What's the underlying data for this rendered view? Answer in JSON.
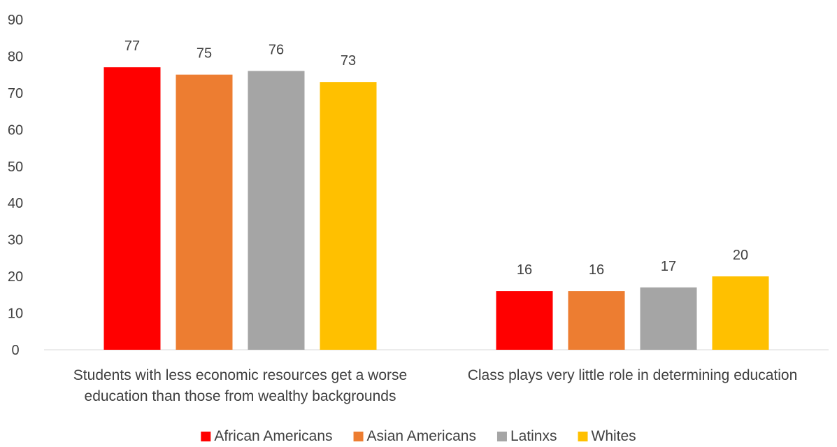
{
  "chart_data": {
    "type": "bar",
    "categories": [
      [
        "Students with less economic resources get a worse",
        "education than those from wealthy backgrounds"
      ],
      [
        "Class plays very little role in determining education"
      ]
    ],
    "series": [
      {
        "name": "African Americans",
        "color": "#FF0000",
        "values": [
          77,
          16
        ]
      },
      {
        "name": "Asian Americans",
        "color": "#ED7D31",
        "values": [
          75,
          16
        ]
      },
      {
        "name": "Latinxs",
        "color": "#A5A5A5",
        "values": [
          76,
          17
        ]
      },
      {
        "name": "Whites",
        "color": "#FFC000",
        "values": [
          73,
          20
        ]
      }
    ],
    "ylim": [
      0,
      90
    ],
    "yticks": [
      0,
      10,
      20,
      30,
      40,
      50,
      60,
      70,
      80,
      90
    ],
    "grid": false,
    "legend_position": "bottom"
  }
}
